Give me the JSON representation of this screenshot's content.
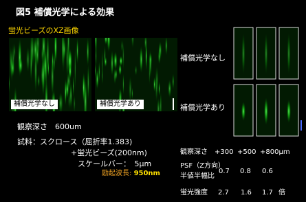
{
  "title": "図5 補償光学による効果",
  "subtitle": "蛍光ビーズのXZ画像",
  "image_labels": [
    "補償光学なし",
    "補償光学あり"
  ],
  "row_labels": [
    "補償光学なし",
    "補償光学あり"
  ],
  "conditions": {
    "depth": "観察深さ　600um",
    "sample": "試料：スクロース（屈折率1.383)",
    "beads": "+蛍光ビーズ(200nm)",
    "scale_bar": "スケールバー：　5μm",
    "wavelength_label": "励起波長:",
    "wavelength_value": "950nm"
  },
  "table": {
    "header": [
      "観察深さ",
      "+300",
      "+500",
      "+800μm"
    ],
    "rows": [
      {
        "label": [
          "PSF（Z方向）",
          "半値半幅比"
        ],
        "values": [
          0.7,
          0.8,
          0.6
        ]
      },
      {
        "label": [
          "蛍光強度"
        ],
        "values": [
          2.7,
          1.6,
          1.7
        ],
        "unit": "倍"
      }
    ]
  }
}
